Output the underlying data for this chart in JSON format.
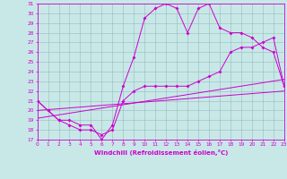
{
  "xlabel": "Windchill (Refroidissement éolien,°C)",
  "ylim": [
    17,
    31
  ],
  "xlim": [
    0,
    23
  ],
  "yticks": [
    17,
    18,
    19,
    20,
    21,
    22,
    23,
    24,
    25,
    26,
    27,
    28,
    29,
    30,
    31
  ],
  "xticks": [
    0,
    1,
    2,
    3,
    4,
    5,
    6,
    7,
    8,
    9,
    10,
    11,
    12,
    13,
    14,
    15,
    16,
    17,
    18,
    19,
    20,
    21,
    22,
    23
  ],
  "bg_color": "#c8e8e8",
  "line_color": "#cc00cc",
  "grid_color": "#99bbbb",
  "line1_x": [
    0,
    1,
    2,
    3,
    4,
    5,
    6,
    7,
    8,
    9,
    10,
    11,
    12,
    13,
    14,
    15,
    16,
    17,
    18,
    19,
    20,
    21,
    22,
    23
  ],
  "line1_y": [
    21.0,
    20.0,
    19.0,
    19.0,
    18.5,
    18.5,
    17.0,
    18.5,
    22.5,
    25.5,
    29.5,
    30.5,
    31.0,
    30.5,
    28.0,
    30.5,
    31.0,
    28.5,
    28.0,
    28.0,
    27.5,
    26.5,
    26.0,
    22.5
  ],
  "line2_x": [
    0,
    1,
    2,
    3,
    4,
    5,
    6,
    7,
    8,
    9,
    10,
    11,
    12,
    13,
    14,
    15,
    16,
    17,
    18,
    19,
    20,
    21,
    22,
    23
  ],
  "line2_y": [
    21.0,
    20.0,
    19.0,
    18.5,
    18.0,
    18.0,
    17.5,
    18.0,
    21.0,
    22.0,
    22.5,
    22.5,
    22.5,
    22.5,
    22.5,
    23.0,
    23.5,
    24.0,
    26.0,
    26.5,
    26.5,
    27.0,
    27.5,
    22.5
  ],
  "line3_x": [
    0,
    23
  ],
  "line3_y": [
    19.2,
    23.2
  ],
  "line4_x": [
    0,
    23
  ],
  "line4_y": [
    20.0,
    22.0
  ]
}
